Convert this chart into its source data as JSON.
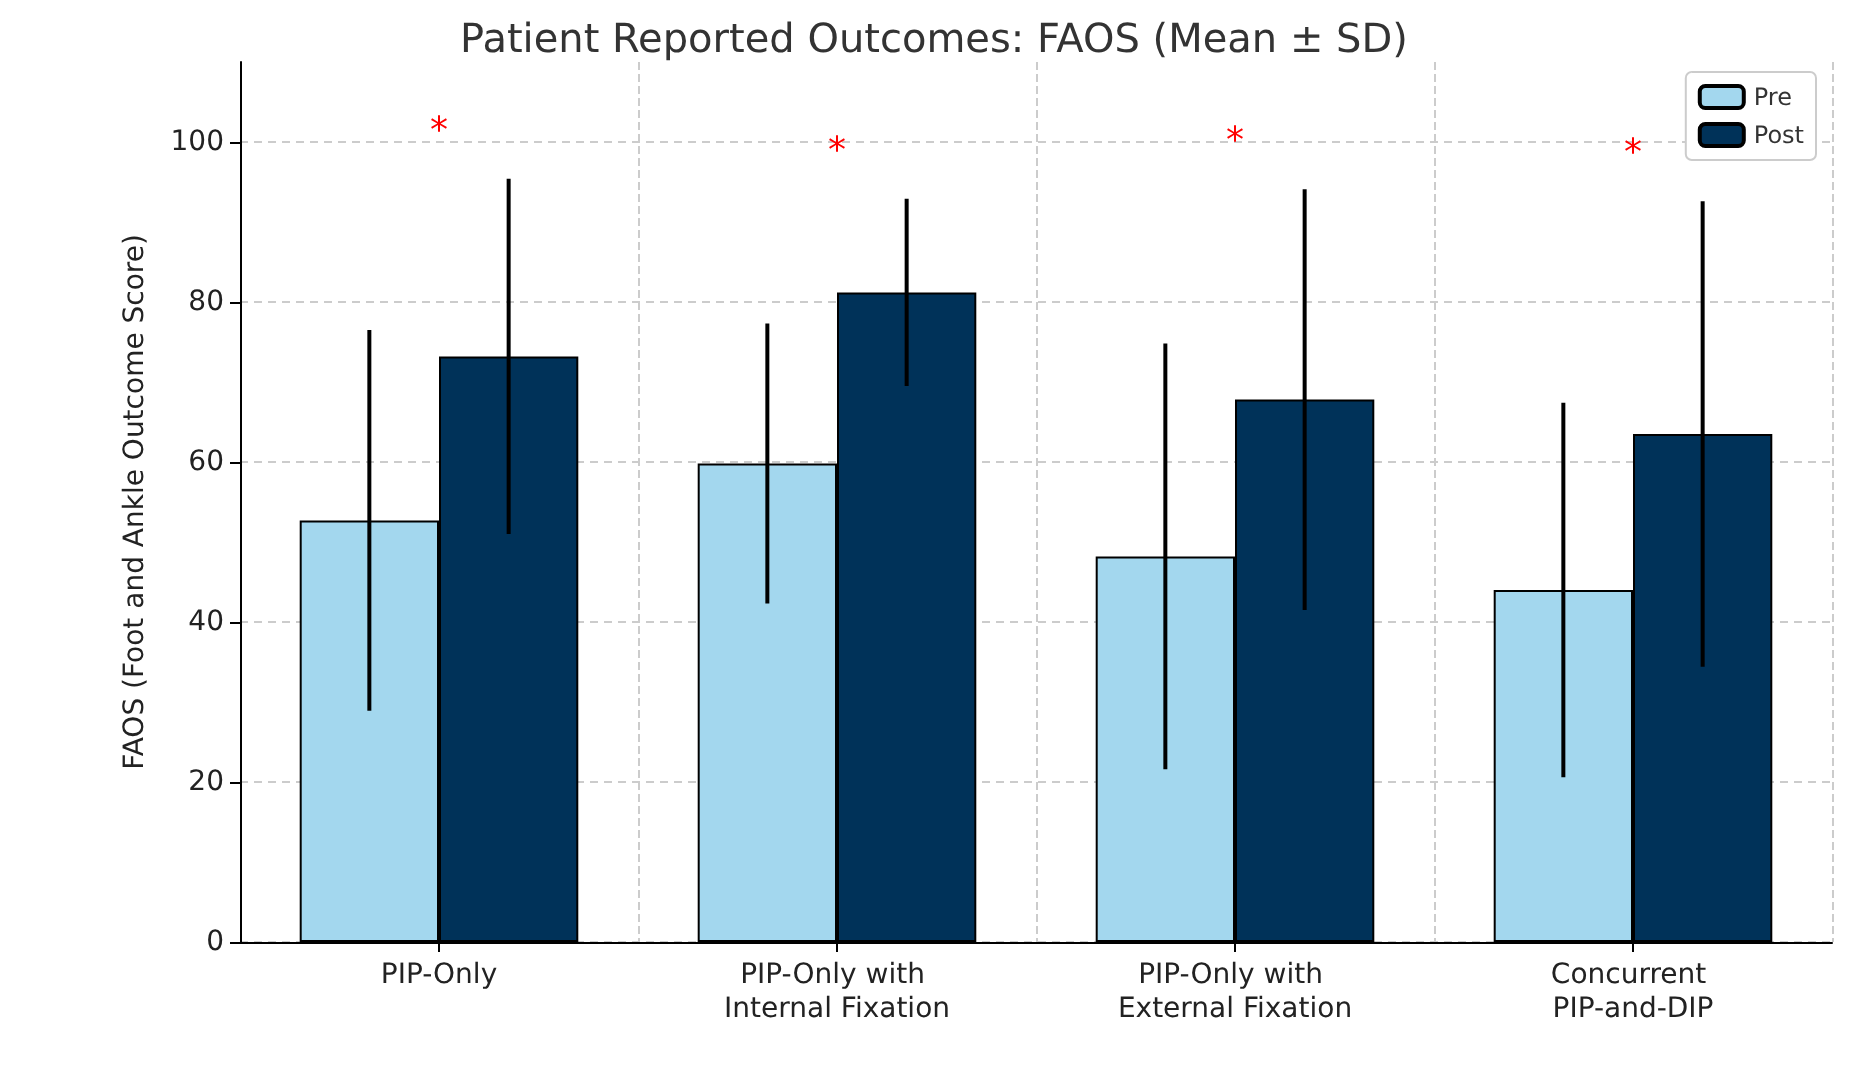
{
  "chart_data": {
    "type": "bar",
    "title": "Patient Reported Outcomes: FAOS (Mean ± SD)",
    "ylabel": "FAOS (Foot and Ankle Outcome Score)",
    "categories": [
      "PIP-Only",
      "PIP-Only with Internal Fixation",
      "PIP-Only with External Fixation",
      "Concurrent PIP-and-DIP"
    ],
    "series": [
      {
        "name": "Pre",
        "color": "#a3d7ee",
        "values": [
          52.7,
          59.8,
          48.2,
          44.0
        ],
        "errors": [
          23.8,
          17.5,
          26.6,
          23.4
        ]
      },
      {
        "name": "Post",
        "color": "#003259",
        "values": [
          73.2,
          81.2,
          67.8,
          63.5
        ],
        "errors": [
          22.2,
          11.7,
          26.3,
          29.1
        ]
      }
    ],
    "ylim": [
      0,
      110
    ],
    "yticks": [
      0,
      20,
      40,
      60,
      80,
      100
    ],
    "grid": true,
    "legend": "top right",
    "annotations": [
      "*",
      "*",
      "*",
      "*"
    ]
  }
}
